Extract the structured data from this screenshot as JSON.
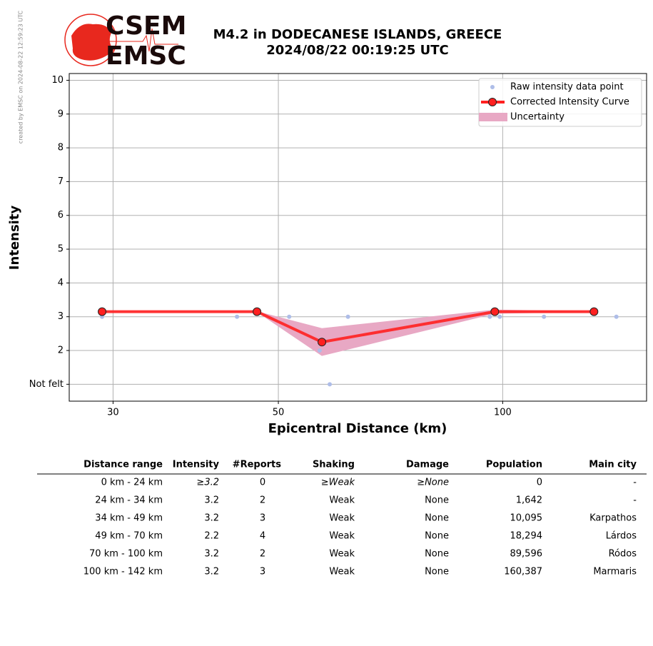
{
  "watermark": "created by EMSC on 2024-08-22 12:59:23 UTC",
  "logo": {
    "top": "CSEM",
    "bottom": "EMSC"
  },
  "chart_data": {
    "type": "line",
    "title": "M4.2 in DODECANESE ISLANDS, GREECE",
    "subtitle": "2024/08/22 00:19:25 UTC",
    "xlabel": "Epicentral Distance (km)",
    "ylabel": "Intensity",
    "x_scale": "log",
    "xlim": [
      26.2,
      156
    ],
    "ylim": [
      0.5,
      10.2
    ],
    "xticks": [
      30,
      50,
      100
    ],
    "yticks": [
      {
        "value": 1,
        "label": "Not felt"
      },
      2,
      3,
      4,
      5,
      6,
      7,
      8,
      9,
      10
    ],
    "grid": true,
    "legend": "upper right",
    "series": [
      {
        "name": "Raw intensity data point",
        "type": "scatter",
        "color": "#aebde8",
        "x": [
          29.0,
          44.0,
          51.7,
          56.8,
          58.6,
          62.0,
          96.1,
          99.1,
          113.6,
          142.1
        ],
        "values": [
          3,
          3,
          3,
          2,
          1,
          3,
          3,
          3,
          3,
          3
        ]
      },
      {
        "name": "Corrected Intensity Curve",
        "type": "line",
        "color": "#ff2020",
        "x": [
          29.0,
          46.8,
          57.2,
          97.6,
          132.6
        ],
        "values": [
          3.15,
          3.15,
          2.25,
          3.15,
          3.15
        ]
      },
      {
        "name": "Uncertainty",
        "type": "band",
        "color": "#e8a8c4",
        "x": [
          29.0,
          46.8,
          57.2,
          97.6,
          132.6
        ],
        "lower": [
          3.15,
          3.15,
          1.85,
          3.1,
          3.15
        ],
        "upper": [
          3.15,
          3.15,
          2.65,
          3.2,
          3.15
        ]
      }
    ]
  },
  "table": {
    "columns": [
      "Distance range",
      "Intensity",
      "#Reports",
      "Shaking",
      "Damage",
      "Population",
      "Main city"
    ],
    "rows": [
      [
        "0 km -   24 km",
        "≥3.2",
        "0",
        "≥Weak",
        "≥None",
        "0",
        "-"
      ],
      [
        "24 km -   34 km",
        "3.2",
        "2",
        "Weak",
        "None",
        "1,642",
        "-"
      ],
      [
        "34 km -   49 km",
        "3.2",
        "3",
        "Weak",
        "None",
        "10,095",
        "Karpathos"
      ],
      [
        "49 km -   70 km",
        "2.2",
        "4",
        "Weak",
        "None",
        "18,294",
        "Lárdos"
      ],
      [
        "70 km -  100 km",
        "3.2",
        "2",
        "Weak",
        "None",
        "89,596",
        "Ródos"
      ],
      [
        "100 km -  142 km",
        "3.2",
        "3",
        "Weak",
        "None",
        "160,387",
        "Marmaris"
      ]
    ]
  }
}
